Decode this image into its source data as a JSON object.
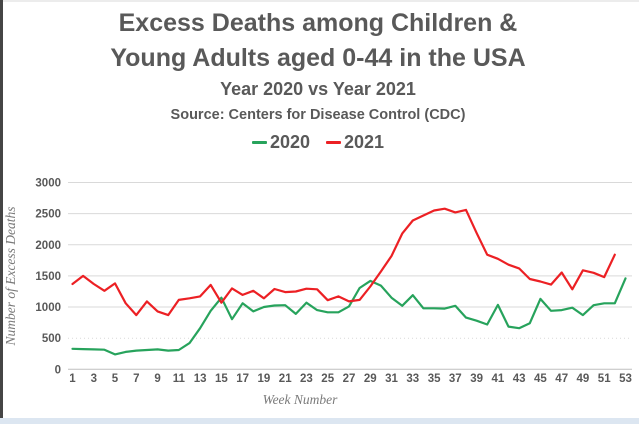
{
  "header": {
    "title_line1": "Excess Deaths among Children &",
    "title_line2": "Young Adults aged 0-44 in the USA",
    "subtitle": "Year 2020 vs Year 2021",
    "source": "Source: Centers for Disease Control (CDC)"
  },
  "chart_data": {
    "type": "line",
    "title": "Excess Deaths among Children & Young Adults aged 0-44 in the USA",
    "subtitle": "Year 2020 vs Year 2021",
    "source": "Source: Centers for Disease Control (CDC)",
    "xlabel": "Week Number",
    "ylabel": "Number of Excess Deaths",
    "xlim": [
      1,
      53
    ],
    "ylim": [
      0,
      3000
    ],
    "y_ticks": [
      0,
      500,
      1000,
      1500,
      2000,
      2500,
      3000
    ],
    "x_ticks": [
      1,
      3,
      5,
      7,
      9,
      11,
      13,
      15,
      17,
      19,
      21,
      23,
      25,
      27,
      29,
      31,
      33,
      35,
      37,
      39,
      41,
      43,
      45,
      47,
      49,
      51,
      53
    ],
    "grid": true,
    "legend_position": "top",
    "text_color": "#595959",
    "grid_color": "#d9d9d9",
    "axis_color": "#bfbfbf",
    "series": [
      {
        "name": "2020",
        "color": "#27a35c",
        "x_start": 1,
        "values": [
          330,
          325,
          320,
          315,
          240,
          280,
          300,
          310,
          320,
          300,
          310,
          420,
          660,
          940,
          1150,
          805,
          1060,
          930,
          1000,
          1025,
          1030,
          890,
          1070,
          950,
          915,
          915,
          1010,
          1305,
          1420,
          1345,
          1150,
          1020,
          1190,
          980,
          980,
          975,
          1020,
          830,
          780,
          720,
          1035,
          685,
          660,
          740,
          1130,
          940,
          950,
          990,
          870,
          1030,
          1060,
          1060,
          1460
        ]
      },
      {
        "name": "2021",
        "color": "#ec2024",
        "x_start": 1,
        "values": [
          1370,
          1500,
          1370,
          1260,
          1380,
          1060,
          870,
          1090,
          930,
          870,
          1115,
          1140,
          1170,
          1355,
          1070,
          1300,
          1195,
          1260,
          1140,
          1290,
          1240,
          1250,
          1295,
          1285,
          1110,
          1170,
          1090,
          1115,
          1330,
          1570,
          1820,
          2180,
          2390,
          2470,
          2550,
          2580,
          2520,
          2560,
          2190,
          1840,
          1775,
          1680,
          1620,
          1450,
          1410,
          1360,
          1555,
          1285,
          1590,
          1550,
          1480,
          1840
        ]
      }
    ]
  }
}
